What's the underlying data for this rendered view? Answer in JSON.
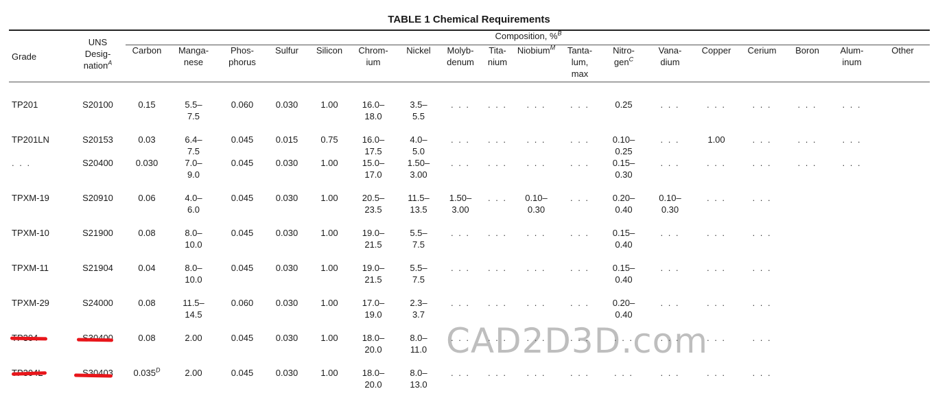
{
  "title": "TABLE 1 Chemical Requirements",
  "composition_header": {
    "text": "Composition, %",
    "note": "B"
  },
  "columns": {
    "grade": "Grade",
    "uns": {
      "lines": [
        "UNS",
        "Desig-",
        "nation"
      ],
      "note": "A"
    },
    "carbon": "Carbon",
    "manganese": [
      "Manga-",
      "nese"
    ],
    "phosphorus": [
      "Phos-",
      "phorus"
    ],
    "sulfur": "Sulfur",
    "silicon": "Silicon",
    "chromium": [
      "Chrom-",
      "ium"
    ],
    "nickel": "Nickel",
    "molybdenum": [
      "Molyb-",
      "denum"
    ],
    "titanium": [
      "Tita-",
      "nium"
    ],
    "niobium": {
      "text": "Niobium",
      "note": "M"
    },
    "tantalum": [
      "Tanta-",
      "lum,",
      "max"
    ],
    "nitrogen": {
      "lines": [
        "Nitro-",
        "gen"
      ],
      "note": "C"
    },
    "vanadium": [
      "Vana-",
      "dium"
    ],
    "copper": "Copper",
    "cerium": "Cerium",
    "boron": "Boron",
    "aluminum": [
      "Alum-",
      "inum"
    ],
    "other": "Other"
  },
  "rows": [
    {
      "grade": "TP201",
      "uns": "S20100",
      "carbon": "0.15",
      "manganese": [
        "5.5–",
        "7.5"
      ],
      "phosphorus": "0.060",
      "sulfur": "0.030",
      "silicon": "1.00",
      "chromium": [
        "16.0–",
        "18.0"
      ],
      "nickel": [
        "3.5–",
        "5.5"
      ],
      "molybdenum": ". . .",
      "titanium": ". . .",
      "niobium": ". . .",
      "tantalum": ". . .",
      "nitrogen": "0.25",
      "vanadium": ". . .",
      "copper": ". . .",
      "cerium": ". . .",
      "boron": ". . .",
      "aluminum": ". . .",
      "other": ""
    },
    {
      "grade": "TP201LN",
      "uns": "S20153",
      "carbon": "0.03",
      "manganese": [
        "6.4–",
        "7.5"
      ],
      "phosphorus": "0.045",
      "sulfur": "0.015",
      "silicon": "0.75",
      "chromium": [
        "16.0–",
        "17.5"
      ],
      "nickel": [
        "4.0–",
        "5.0"
      ],
      "molybdenum": ". . .",
      "titanium": ". . .",
      "niobium": ". . .",
      "tantalum": ". . .",
      "nitrogen": [
        "0.10–",
        "0.25"
      ],
      "vanadium": ". . .",
      "copper": "1.00",
      "cerium": ". . .",
      "boron": ". . .",
      "aluminum": ". . .",
      "other": ""
    },
    {
      "grade": ". . .",
      "uns": "S20400",
      "carbon": "0.030",
      "manganese": [
        "7.0–",
        "9.0"
      ],
      "phosphorus": "0.045",
      "sulfur": "0.030",
      "silicon": "1.00",
      "chromium": [
        "15.0–",
        "17.0"
      ],
      "nickel": [
        "1.50–",
        "3.00"
      ],
      "molybdenum": ". . .",
      "titanium": ". . .",
      "niobium": ". . .",
      "tantalum": ". . .",
      "nitrogen": [
        "0.15–",
        "0.30"
      ],
      "vanadium": ". . .",
      "copper": ". . .",
      "cerium": ". . .",
      "boron": ". . .",
      "aluminum": ". . .",
      "other": ""
    },
    {
      "grade": "TPXM-19",
      "uns": "S20910",
      "carbon": "0.06",
      "manganese": [
        "4.0–",
        "6.0"
      ],
      "phosphorus": "0.045",
      "sulfur": "0.030",
      "silicon": "1.00",
      "chromium": [
        "20.5–",
        "23.5"
      ],
      "nickel": [
        "11.5–",
        "13.5"
      ],
      "molybdenum": [
        "1.50–",
        "3.00"
      ],
      "titanium": ". . .",
      "niobium": [
        "0.10–",
        "0.30"
      ],
      "tantalum": ". . .",
      "nitrogen": [
        "0.20–",
        "0.40"
      ],
      "vanadium": [
        "0.10–",
        "0.30"
      ],
      "copper": ". . .",
      "cerium": ". . .",
      "boron": "",
      "aluminum": "",
      "other": ""
    },
    {
      "grade": "TPXM-10",
      "uns": "S21900",
      "carbon": "0.08",
      "manganese": [
        "8.0–",
        "10.0"
      ],
      "phosphorus": "0.045",
      "sulfur": "0.030",
      "silicon": "1.00",
      "chromium": [
        "19.0–",
        "21.5"
      ],
      "nickel": [
        "5.5–",
        "7.5"
      ],
      "molybdenum": ". . .",
      "titanium": ". . .",
      "niobium": ". . .",
      "tantalum": ". . .",
      "nitrogen": [
        "0.15–",
        "0.40"
      ],
      "vanadium": ". . .",
      "copper": ". . .",
      "cerium": ". . .",
      "boron": "",
      "aluminum": "",
      "other": ""
    },
    {
      "grade": "TPXM-11",
      "uns": "S21904",
      "carbon": "0.04",
      "manganese": [
        "8.0–",
        "10.0"
      ],
      "phosphorus": "0.045",
      "sulfur": "0.030",
      "silicon": "1.00",
      "chromium": [
        "19.0–",
        "21.5"
      ],
      "nickel": [
        "5.5–",
        "7.5"
      ],
      "molybdenum": ". . .",
      "titanium": ". . .",
      "niobium": ". . .",
      "tantalum": ". . .",
      "nitrogen": [
        "0.15–",
        "0.40"
      ],
      "vanadium": ". . .",
      "copper": ". . .",
      "cerium": ". . .",
      "boron": "",
      "aluminum": "",
      "other": ""
    },
    {
      "grade": "TPXM-29",
      "uns": "S24000",
      "carbon": "0.08",
      "manganese": [
        "11.5–",
        "14.5"
      ],
      "phosphorus": "0.060",
      "sulfur": "0.030",
      "silicon": "1.00",
      "chromium": [
        "17.0–",
        "19.0"
      ],
      "nickel": [
        "2.3–",
        "3.7"
      ],
      "molybdenum": ". . .",
      "titanium": ". . .",
      "niobium": ". . .",
      "tantalum": ". . .",
      "nitrogen": [
        "0.20–",
        "0.40"
      ],
      "vanadium": ". . .",
      "copper": ". . .",
      "cerium": ". . .",
      "boron": "",
      "aluminum": "",
      "other": ""
    },
    {
      "grade": "TP304",
      "uns": "S30400",
      "carbon": "0.08",
      "manganese": "2.00",
      "phosphorus": "0.045",
      "sulfur": "0.030",
      "silicon": "1.00",
      "chromium": [
        "18.0–",
        "20.0"
      ],
      "nickel": [
        "8.0–",
        "11.0"
      ],
      "molybdenum": ". . .",
      "titanium": ". . .",
      "niobium": ". . .",
      "tantalum": ". . .",
      "nitrogen": ". . .",
      "vanadium": ". . .",
      "copper": ". . .",
      "cerium": ". . .",
      "boron": "",
      "aluminum": "",
      "other": ""
    },
    {
      "grade": "TP304L",
      "uns": "S30403",
      "carbon": "0.035",
      "carbon_note": "D",
      "manganese": "2.00",
      "phosphorus": "0.045",
      "sulfur": "0.030",
      "silicon": "1.00",
      "chromium": [
        "18.0–",
        "20.0"
      ],
      "nickel": [
        "8.0–",
        "13.0"
      ],
      "molybdenum": ". . .",
      "titanium": ". . .",
      "niobium": ". . .",
      "tantalum": ". . .",
      "nitrogen": ". . .",
      "vanadium": ". . .",
      "copper": ". . .",
      "cerium": ". . .",
      "boron": "",
      "aluminum": "",
      "other": ""
    }
  ],
  "watermark": "CAD2D3D.com",
  "highlight_color": "#e8161b"
}
